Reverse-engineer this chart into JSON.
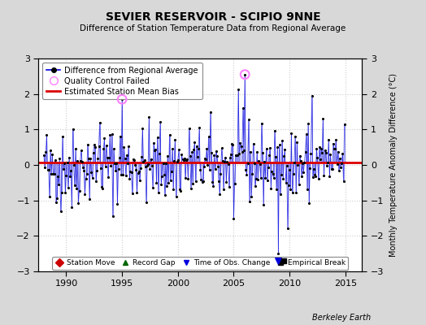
{
  "title": "SEVIER RESERVOIR - SCIPIO 9NNE",
  "subtitle": "Difference of Station Temperature Data from Regional Average",
  "ylabel": "Monthly Temperature Anomaly Difference (°C)",
  "xlabel_credit": "Berkeley Earth",
  "xlim": [
    1987.5,
    2016.5
  ],
  "ylim": [
    -3,
    3
  ],
  "yticks": [
    -3,
    -2,
    -1,
    0,
    1,
    2,
    3
  ],
  "xticks": [
    1990,
    1995,
    2000,
    2005,
    2010,
    2015
  ],
  "bias_line": 0.07,
  "line_color": "#0000dd",
  "bias_color": "#dd0000",
  "background_color": "#d8d8d8",
  "plot_bg_color": "#ffffff",
  "qc_color": "#ff80ff",
  "seed": 42,
  "n_points": 324,
  "start_year": 1988.0
}
